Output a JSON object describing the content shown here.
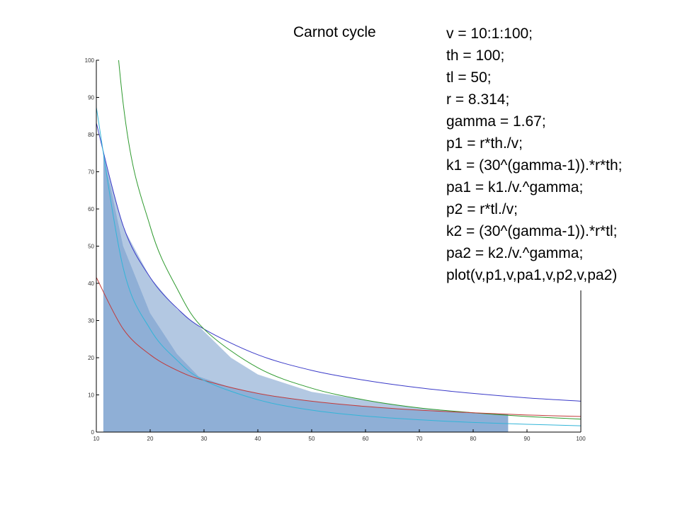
{
  "slide": {
    "title": "Carnot cycle",
    "code_lines": [
      "v = 10:1:100;",
      "th = 100;",
      "tl = 50;",
      "r = 8.314;",
      "gamma = 1.67;",
      "p1 = r*th./v;",
      "k1 = (30^(gamma-1)).*r*th;",
      "pa1 = k1./v.^gamma;",
      "p2 = r*tl./v;",
      "k2 = (30^(gamma-1)).*r*tl;",
      "pa2 = k2./v.^gamma;",
      "plot(v,p1,v,pa1,v,p2,v,pa2)"
    ]
  },
  "chart_data": {
    "type": "line",
    "title": "",
    "xlabel": "",
    "ylabel": "",
    "xlim": [
      10,
      100
    ],
    "ylim": [
      0,
      100
    ],
    "xticks": [
      10,
      20,
      30,
      40,
      50,
      60,
      70,
      80,
      90,
      100
    ],
    "yticks": [
      0,
      10,
      20,
      30,
      40,
      50,
      60,
      70,
      80,
      90,
      100
    ],
    "grid": false,
    "legend": "none",
    "x": [
      10,
      15,
      20,
      25,
      30,
      40,
      50,
      60,
      70,
      80,
      90,
      100
    ],
    "series": [
      {
        "name": "",
        "color": "#3a3ac8",
        "values": [
          83.1,
          55.4,
          41.6,
          33.3,
          27.7,
          20.8,
          16.6,
          13.9,
          11.9,
          10.4,
          9.2,
          8.3
        ]
      },
      {
        "name": "",
        "color": "#2e9a2e",
        "values": [
          174.7,
          88.2,
          55.3,
          38.6,
          27.7,
          17.3,
          11.8,
          8.6,
          6.5,
          5.2,
          4.2,
          3.5
        ]
      },
      {
        "name": "",
        "color": "#c23a3a",
        "values": [
          41.6,
          27.7,
          20.8,
          16.6,
          13.9,
          10.4,
          8.3,
          6.9,
          5.9,
          5.2,
          4.6,
          4.2
        ]
      },
      {
        "name": "",
        "color": "#33b5d8",
        "values": [
          87.3,
          44.1,
          27.7,
          19.3,
          13.9,
          8.7,
          5.9,
          4.3,
          3.3,
          2.6,
          2.1,
          1.7
        ]
      }
    ],
    "shaded_regions": [
      {
        "description_id": "light",
        "color": "#b3c8e2",
        "x": [
          11.3,
          15,
          20,
          25,
          29,
          35,
          40,
          50,
          60,
          70,
          80,
          86.5
        ],
        "upper": [
          75,
          55,
          41.6,
          33,
          28.5,
          20,
          15.5,
          10.8,
          8.6,
          6.5,
          5.2,
          4.8
        ],
        "lower": [
          75,
          50,
          32,
          21,
          15,
          12,
          10.4,
          8.3,
          6.9,
          5.9,
          5.2,
          4.8
        ]
      },
      {
        "description_id": "dark",
        "color": "#8fafd6",
        "x": [
          11.3,
          15,
          20,
          25,
          29,
          35,
          40,
          50,
          60,
          70,
          80,
          86.5
        ],
        "upper": [
          75,
          50,
          32,
          21,
          15,
          12,
          10.4,
          8.3,
          6.9,
          5.9,
          5.2,
          4.8
        ],
        "lower": [
          0,
          0,
          0,
          0,
          0,
          0,
          0,
          0,
          0,
          0,
          0,
          0
        ]
      }
    ]
  }
}
